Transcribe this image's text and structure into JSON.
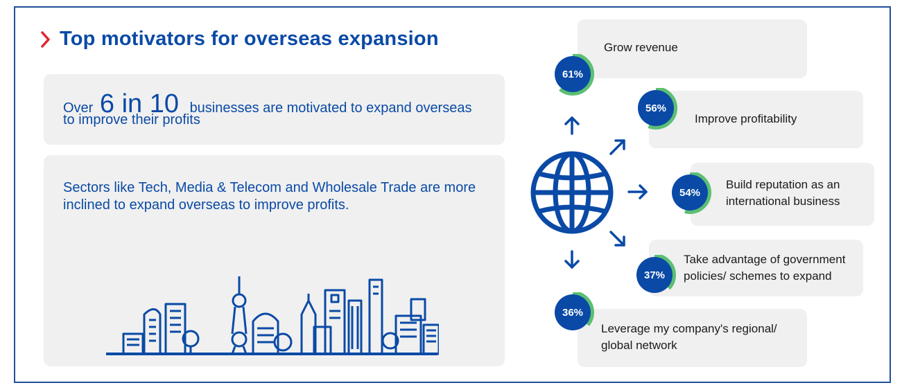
{
  "header": {
    "title": "Top motivators for overseas expansion"
  },
  "stat_box": {
    "prefix": "Over",
    "big": "6 in 10",
    "suffix": "businesses are motivated to expand overseas",
    "line2": "to improve their profits"
  },
  "sector_box": {
    "text": "Sectors like Tech, Media & Telecom and Wholesale Trade are more inclined to expand overseas to improve profits."
  },
  "motivators": [
    {
      "percent": "61%",
      "value": 61,
      "label": "Grow revenue"
    },
    {
      "percent": "56%",
      "value": 56,
      "label": "Improve profitability"
    },
    {
      "percent": "54%",
      "value": 54,
      "label_line1": "Build reputation as an",
      "label_line2": "international business"
    },
    {
      "percent": "37%",
      "value": 37,
      "label_line1": "Take advantage of government",
      "label_line2": "policies/ schemes to expand"
    },
    {
      "percent": "36%",
      "value": 36,
      "label_line1": "Leverage my company's regional/",
      "label_line2": "global network"
    }
  ],
  "colors": {
    "brand_blue": "#0a4aa6",
    "ring_green": "#5cbf72",
    "chevron_red": "#e2242f",
    "card_grey": "#f0f0f0"
  },
  "icons": {
    "chevron": "chevron-right-icon",
    "globe": "globe-icon",
    "skyline": "city-skyline-illustration"
  }
}
